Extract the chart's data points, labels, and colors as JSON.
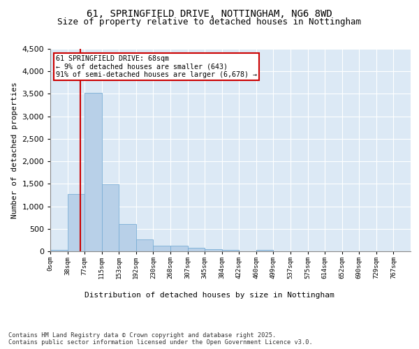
{
  "title1": "61, SPRINGFIELD DRIVE, NOTTINGHAM, NG6 8WD",
  "title2": "Size of property relative to detached houses in Nottingham",
  "xlabel": "Distribution of detached houses by size in Nottingham",
  "ylabel": "Number of detached properties",
  "bar_labels": [
    "0sqm",
    "38sqm",
    "77sqm",
    "115sqm",
    "153sqm",
    "192sqm",
    "230sqm",
    "268sqm",
    "307sqm",
    "345sqm",
    "384sqm",
    "422sqm",
    "460sqm",
    "499sqm",
    "537sqm",
    "575sqm",
    "614sqm",
    "652sqm",
    "690sqm",
    "729sqm",
    "767sqm"
  ],
  "bar_values": [
    30,
    1280,
    3530,
    1490,
    600,
    260,
    130,
    130,
    80,
    40,
    30,
    5,
    30,
    0,
    0,
    0,
    0,
    0,
    0,
    0,
    0
  ],
  "bar_color": "#b8d0e8",
  "bar_edgecolor": "#7aaed6",
  "vline_x": 1.75,
  "vline_color": "#cc0000",
  "annotation_text": "61 SPRINGFIELD DRIVE: 68sqm\n← 9% of detached houses are smaller (643)\n91% of semi-detached houses are larger (6,678) →",
  "annotation_box_color": "#cc0000",
  "ylim": [
    0,
    4500
  ],
  "yticks": [
    0,
    500,
    1000,
    1500,
    2000,
    2500,
    3000,
    3500,
    4000,
    4500
  ],
  "background_color": "#dce9f5",
  "grid_color": "#ffffff",
  "title1_fontsize": 10,
  "title2_fontsize": 9,
  "xlabel_fontsize": 8,
  "ylabel_fontsize": 8,
  "footnote": "Contains HM Land Registry data © Crown copyright and database right 2025.\nContains public sector information licensed under the Open Government Licence v3.0."
}
